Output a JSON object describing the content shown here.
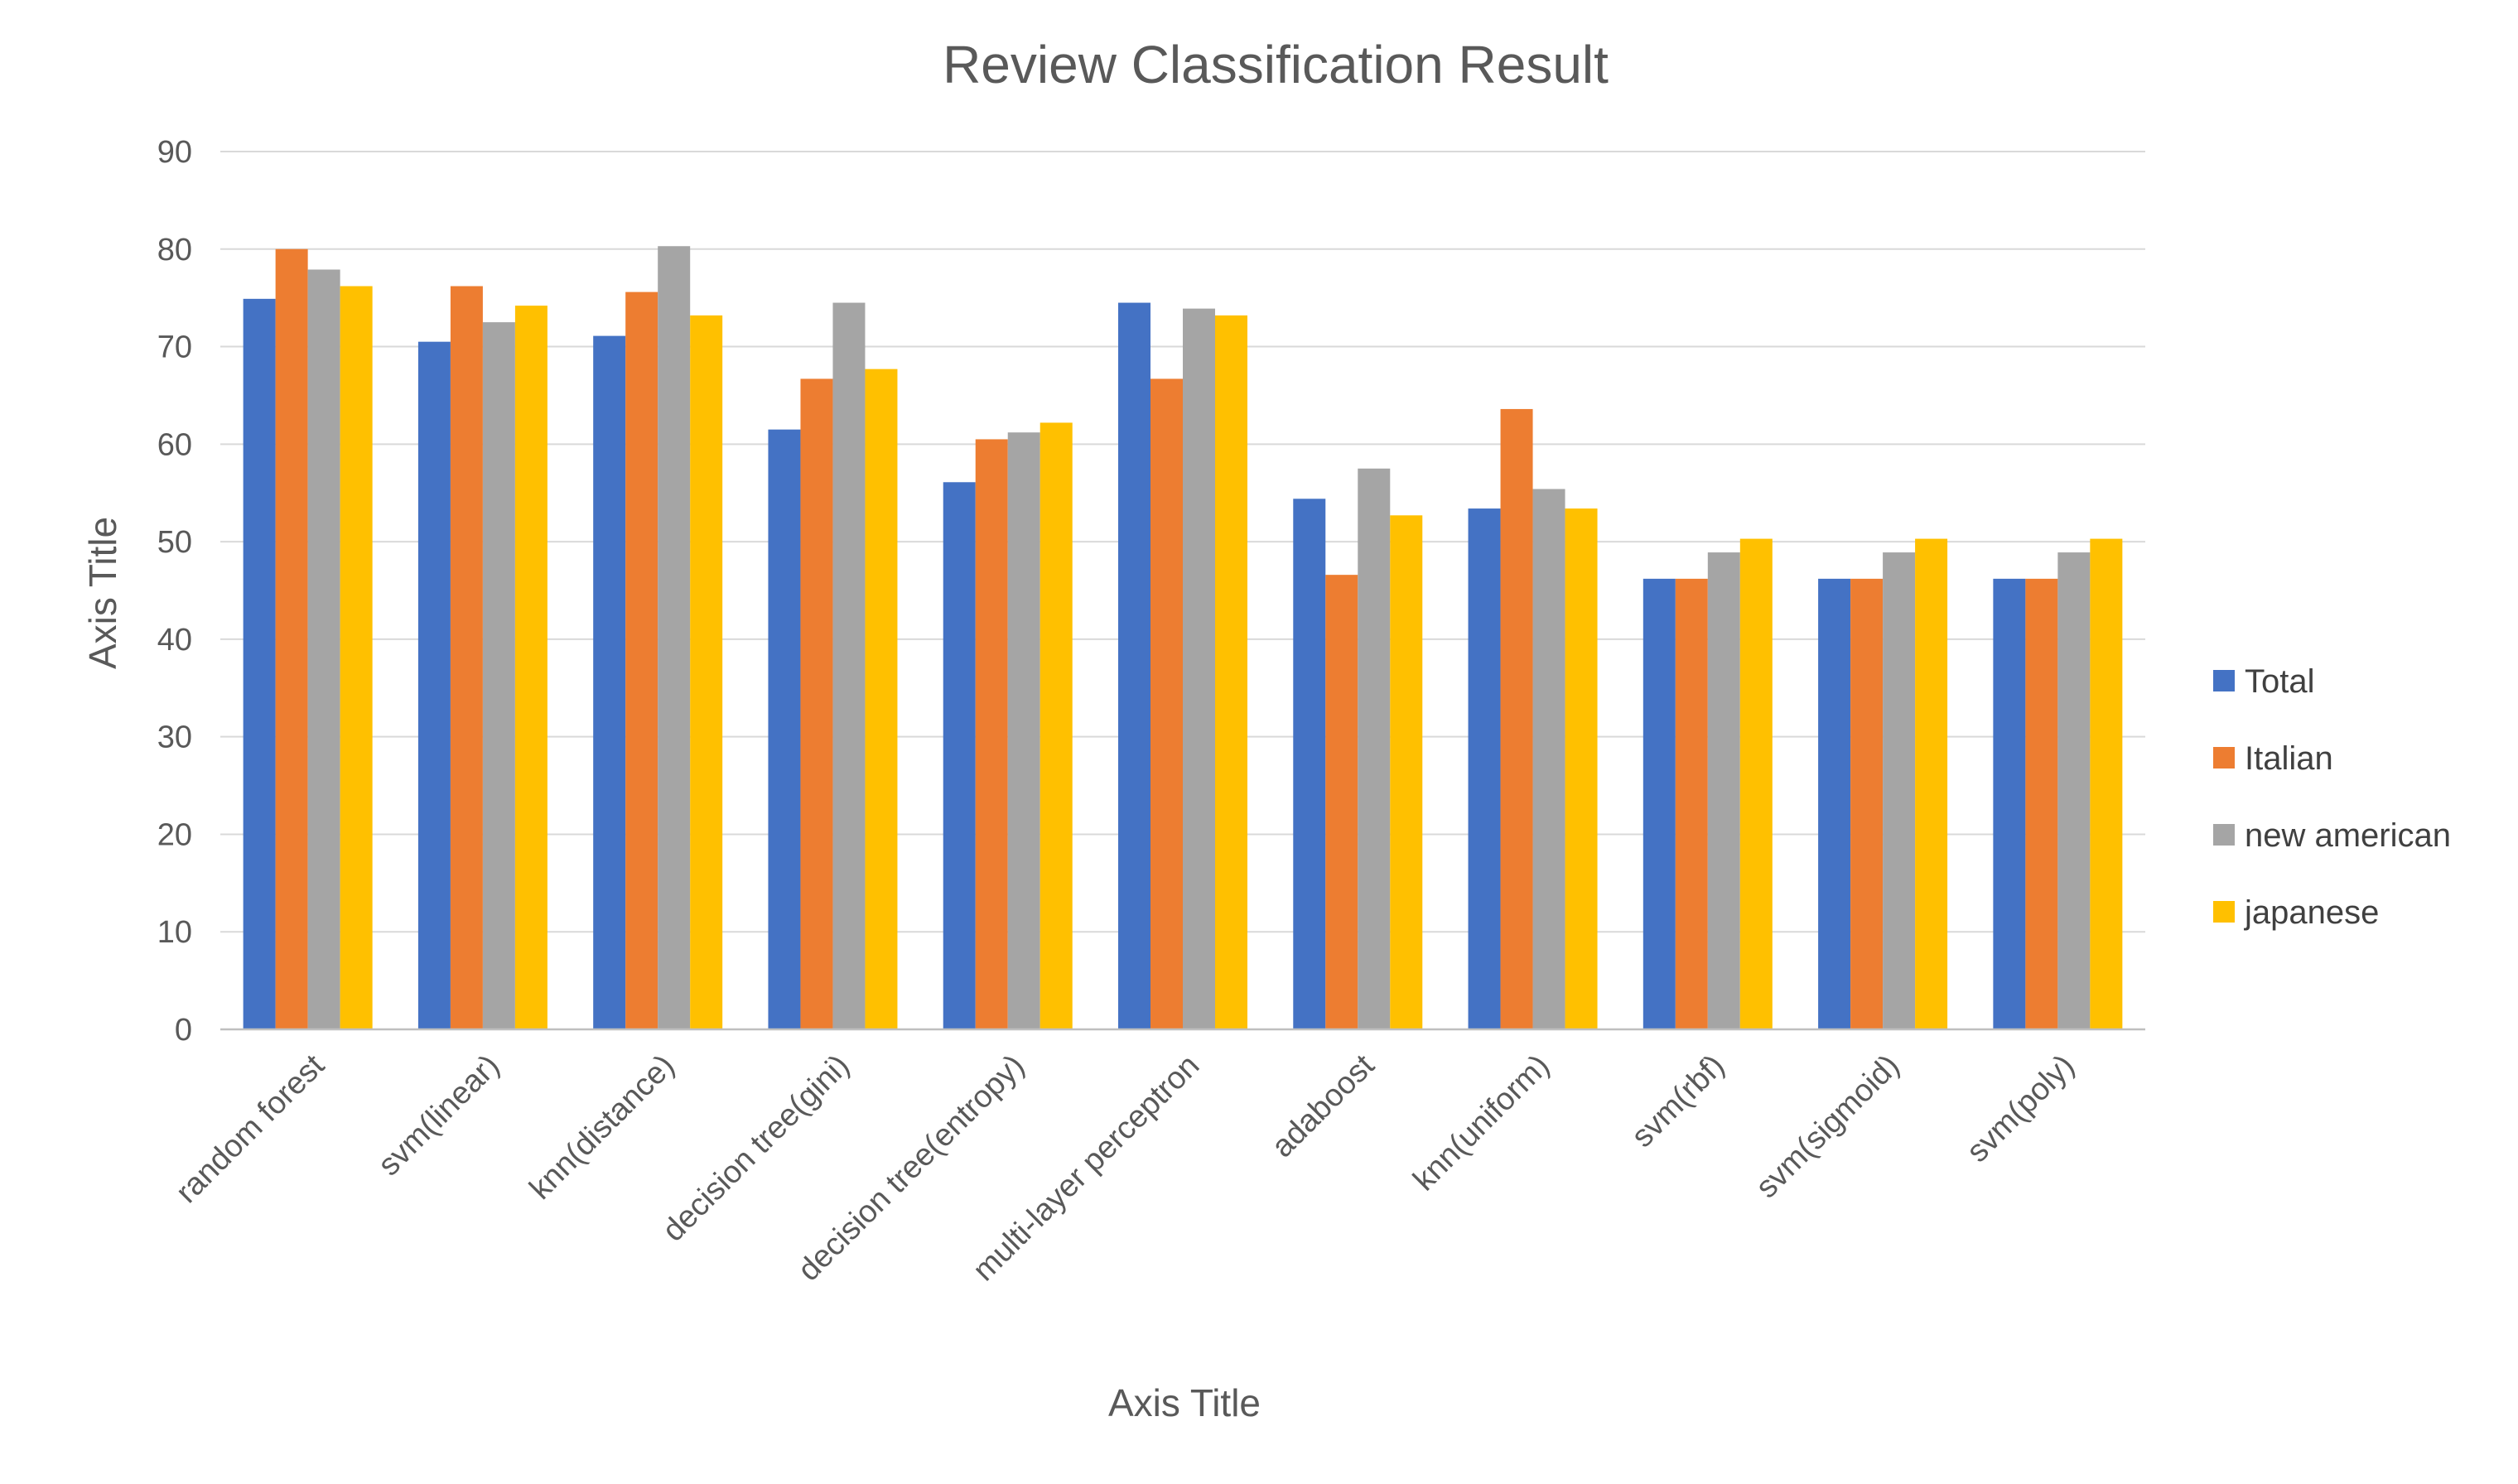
{
  "chart_data": {
    "type": "bar",
    "title": "Review Classification Result",
    "xlabel": "Axis Title",
    "ylabel": "Axis Title",
    "ylim": [
      0,
      90
    ],
    "yticks": [
      0,
      10,
      20,
      30,
      40,
      50,
      60,
      70,
      80,
      90
    ],
    "grid": true,
    "legend_position": "right",
    "categories": [
      "random forest",
      "svm(linear)",
      "knn(distance)",
      "decision tree(gini)",
      "decision tree(entropy)",
      "multi-layer perceptron",
      "adaboost",
      "knn(uniform)",
      "svm(rbf)",
      "svm(sigmoid)",
      "svm(poly)"
    ],
    "series": [
      {
        "name": "Total",
        "color": "#4472C4",
        "values": [
          74.9,
          70.5,
          71.1,
          61.5,
          56.1,
          74.5,
          54.4,
          53.4,
          46.2,
          46.2,
          46.2
        ]
      },
      {
        "name": "Italian",
        "color": "#ED7D31",
        "values": [
          80.0,
          76.2,
          75.6,
          66.7,
          60.5,
          66.7,
          46.6,
          63.6,
          46.2,
          46.2,
          46.2
        ]
      },
      {
        "name": "new american",
        "color": "#A5A5A5",
        "values": [
          77.9,
          72.5,
          80.3,
          74.5,
          61.2,
          73.9,
          57.5,
          55.4,
          48.9,
          48.9,
          48.9
        ]
      },
      {
        "name": "japanese",
        "color": "#FFC000",
        "values": [
          76.2,
          74.2,
          73.2,
          67.7,
          62.2,
          73.2,
          52.7,
          53.4,
          50.3,
          50.3,
          50.3
        ]
      }
    ]
  }
}
